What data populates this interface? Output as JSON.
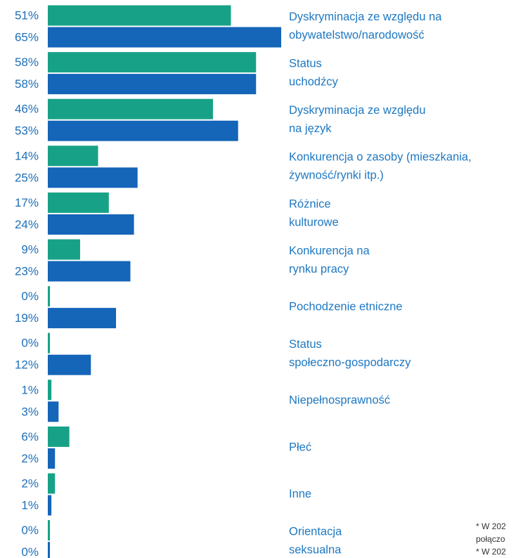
{
  "chart_data": {
    "type": "hbar",
    "categories": [
      [
        "Dyskryminacja ze względu na",
        "obywatelstwo/narodowość"
      ],
      [
        "Status",
        "uchodźcy"
      ],
      [
        "Dyskryminacja ze względu",
        "na język"
      ],
      [
        "Konkurencja o zasoby (mieszkania,",
        "żywność/rynki itp.)"
      ],
      [
        "Różnice",
        "kulturowe"
      ],
      [
        "Konkurencja na",
        "rynku pracy"
      ],
      [
        "Pochodzenie etniczne"
      ],
      [
        "Status",
        "społeczno-gospodarczy"
      ],
      [
        "Niepełnosprawność"
      ],
      [
        "Płeć"
      ],
      [
        "Inne"
      ],
      [
        "Orientacja",
        "seksualna"
      ]
    ],
    "series": [
      {
        "color": "#17a287",
        "values": [
          51,
          58,
          46,
          14,
          17,
          9,
          0,
          0,
          1,
          6,
          2,
          0
        ],
        "value_labels": [
          "51%",
          "58%",
          "46%",
          "14%",
          "17%",
          "9%",
          "0%",
          "0%",
          "1%",
          "6%",
          "2%",
          "0%"
        ]
      },
      {
        "color": "#1565b8",
        "values": [
          65,
          58,
          53,
          25,
          24,
          23,
          19,
          12,
          3,
          2,
          1,
          0
        ],
        "value_labels": [
          "65%",
          "58%",
          "53%",
          "25%",
          "24%",
          "23%",
          "19%",
          "12%",
          "3%",
          "2%",
          "1%",
          "0%"
        ]
      }
    ],
    "xlim": [
      0,
      65
    ],
    "footnote_lines": [
      "* W 202",
      "połączo",
      "* W 202"
    ]
  }
}
